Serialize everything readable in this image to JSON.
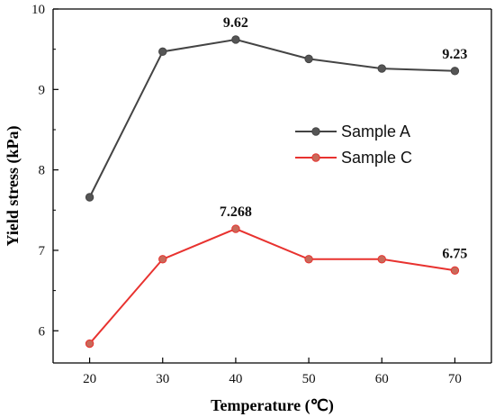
{
  "chart_data": {
    "type": "line",
    "x": [
      20,
      30,
      40,
      50,
      60,
      70
    ],
    "series": [
      {
        "name": "Sample A",
        "color": "#444444",
        "marker_color": "#555555",
        "values": [
          7.66,
          9.47,
          9.62,
          9.38,
          9.26,
          9.23
        ]
      },
      {
        "name": "Sample C",
        "color": "#e8322f",
        "marker_color": "#c86a5a",
        "values": [
          5.84,
          6.89,
          7.268,
          6.89,
          6.89,
          6.75
        ]
      }
    ],
    "annotations": [
      {
        "series": 0,
        "index": 2,
        "text": "9.62"
      },
      {
        "series": 0,
        "index": 5,
        "text": "9.23"
      },
      {
        "series": 1,
        "index": 2,
        "text": "7.268"
      },
      {
        "series": 1,
        "index": 5,
        "text": "6.75"
      }
    ],
    "xlabel": "Temperature (℃)",
    "ylabel": "Yield stress (kPa)",
    "xlim": [
      15,
      75
    ],
    "ylim": [
      5.6,
      10
    ],
    "xticks": [
      20,
      30,
      40,
      50,
      60,
      70
    ],
    "yticks": [
      6,
      7,
      8,
      9,
      10
    ],
    "grid": false,
    "legend_position": "center-right"
  }
}
